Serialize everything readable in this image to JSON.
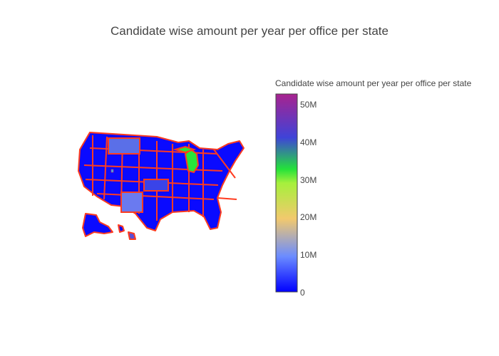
{
  "title": "Candidate wise amount per year per office per state",
  "map": {
    "region": "USA states",
    "border_color": "#ff3b1f",
    "base_color": "#0a0aff"
  },
  "colorbar": {
    "title": "Candidate wise amount per year per office per state",
    "ticks": [
      "0",
      "10M",
      "20M",
      "30M",
      "40M",
      "50M"
    ],
    "tick_values": [
      0,
      10000000,
      20000000,
      30000000,
      40000000,
      50000000
    ],
    "range": [
      0,
      53000000
    ],
    "colorscale": [
      "#0000ff",
      "#6b8cff",
      "#f2c96d",
      "#a6f03c",
      "#24e23a",
      "#3f43d8",
      "#a8238f"
    ]
  },
  "chart_data": {
    "type": "choropleth",
    "title": "Candidate wise amount per year per office per state",
    "scope": "usa",
    "colorbar_title": "Candidate wise amount per year per office per state",
    "zrange": [
      0,
      53000000
    ],
    "highlighted_states": [
      {
        "state": "MI",
        "value": 32000000
      },
      {
        "state": "MT",
        "value": 8000000
      },
      {
        "state": "NM",
        "value": 9000000
      },
      {
        "state": "KS",
        "value": 7000000
      },
      {
        "state": "HI",
        "value": 6000000
      }
    ],
    "default_value": 0
  }
}
